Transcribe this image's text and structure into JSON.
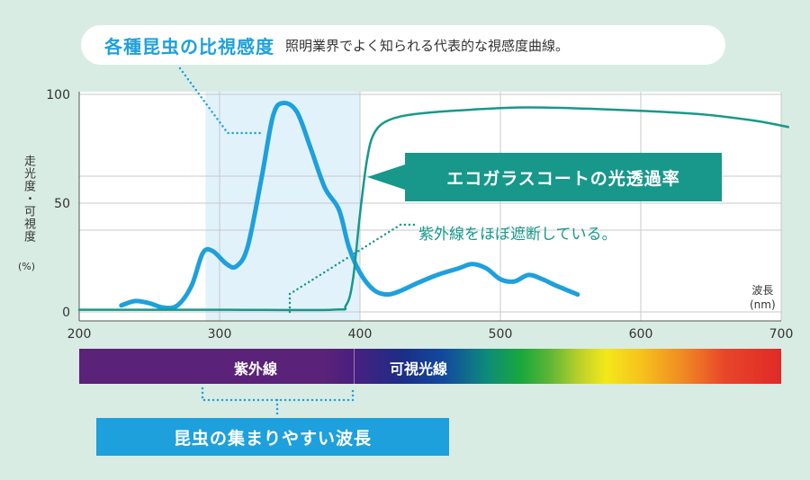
{
  "header": {
    "title": "各種昆虫の比視感度",
    "subtitle": "照明業界でよく知られる代表的な視感度曲線。"
  },
  "axes": {
    "ylabel": "走光度・可視度",
    "yunit": "(%)",
    "xlabel": "波長",
    "xunit": "(nm)"
  },
  "callouts": {
    "glass": "エコガラスコートの光透過率",
    "uv_block": "紫外線をほぼ遮断している。"
  },
  "spectrum": {
    "uv_label": "紫外線",
    "visible_label": "可視光線"
  },
  "band_note": "昆虫の集まりやすい波長",
  "colors": {
    "background": "#d8ece4",
    "insect_curve": "#1ea0dc",
    "glass_curve": "#17988a",
    "highlight_band": "#e2f2fb"
  },
  "chart_data": {
    "type": "line",
    "xlim": [
      200,
      700
    ],
    "ylim": [
      0,
      100
    ],
    "x_ticks": [
      200,
      300,
      400,
      500,
      600,
      700
    ],
    "y_ticks": [
      0,
      50,
      100
    ],
    "grid": true,
    "highlight_range": [
      290,
      400
    ],
    "series": [
      {
        "key": "insect",
        "points": [
          [
            230,
            3
          ],
          [
            240,
            5
          ],
          [
            250,
            4
          ],
          [
            260,
            2
          ],
          [
            270,
            3
          ],
          [
            280,
            12
          ],
          [
            288,
            27
          ],
          [
            295,
            28
          ],
          [
            305,
            22
          ],
          [
            312,
            21
          ],
          [
            320,
            30
          ],
          [
            330,
            62
          ],
          [
            338,
            90
          ],
          [
            345,
            96
          ],
          [
            355,
            92
          ],
          [
            365,
            75
          ],
          [
            375,
            57
          ],
          [
            385,
            47
          ],
          [
            392,
            30
          ],
          [
            400,
            18
          ],
          [
            410,
            10
          ],
          [
            420,
            8
          ],
          [
            430,
            10
          ],
          [
            440,
            13
          ],
          [
            455,
            17
          ],
          [
            470,
            20
          ],
          [
            480,
            22
          ],
          [
            490,
            20
          ],
          [
            500,
            15
          ],
          [
            510,
            14
          ],
          [
            520,
            17
          ],
          [
            530,
            15
          ],
          [
            540,
            12
          ],
          [
            555,
            8
          ]
        ]
      },
      {
        "key": "glass",
        "points": [
          [
            200,
            1
          ],
          [
            300,
            1
          ],
          [
            380,
            1
          ],
          [
            390,
            3
          ],
          [
            395,
            15
          ],
          [
            400,
            45
          ],
          [
            405,
            70
          ],
          [
            410,
            82
          ],
          [
            420,
            88
          ],
          [
            440,
            91
          ],
          [
            480,
            93
          ],
          [
            520,
            94
          ],
          [
            580,
            93
          ],
          [
            640,
            91
          ],
          [
            680,
            88
          ],
          [
            705,
            85
          ]
        ]
      }
    ]
  }
}
